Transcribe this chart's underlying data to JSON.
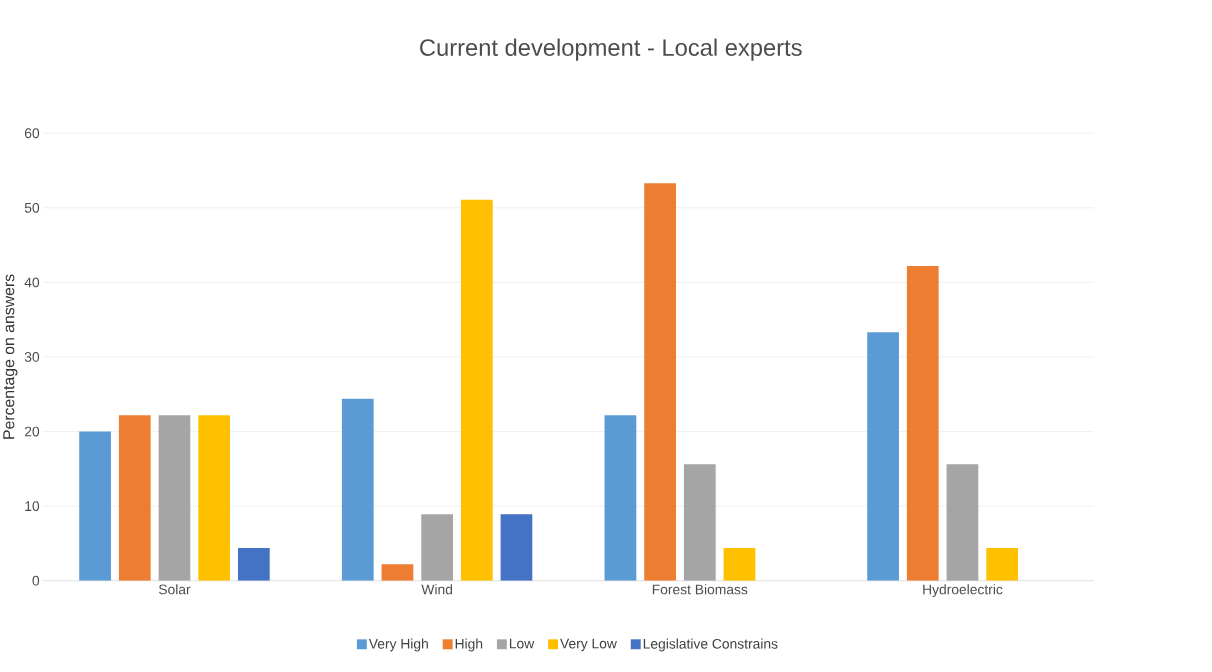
{
  "chart_data": {
    "type": "bar",
    "title": "Current development - Local experts",
    "ylabel": "Percentage on answers",
    "categories": [
      "Solar",
      "Wind",
      "Forest Biomass",
      "Hydroelectric"
    ],
    "series": [
      {
        "name": "Very High",
        "color": "#5b9bd5",
        "values": [
          20,
          24.4,
          22.2,
          33.3
        ]
      },
      {
        "name": "High",
        "color": "#ed7d31",
        "values": [
          22.2,
          2.2,
          53.3,
          42.2
        ]
      },
      {
        "name": "Low",
        "color": "#a5a5a5",
        "values": [
          22.2,
          8.9,
          15.6,
          15.6
        ]
      },
      {
        "name": "Very Low",
        "color": "#ffc000",
        "values": [
          22.2,
          51.1,
          4.4,
          4.4
        ]
      },
      {
        "name": "Legislative Constrains",
        "color": "#4472c4",
        "values": [
          4.4,
          8.9,
          null,
          null
        ]
      }
    ],
    "ylim": [
      0,
      60
    ],
    "yticks": [
      0,
      10,
      20,
      30,
      40,
      50,
      60
    ],
    "grid": "y",
    "legend": "bottom"
  }
}
